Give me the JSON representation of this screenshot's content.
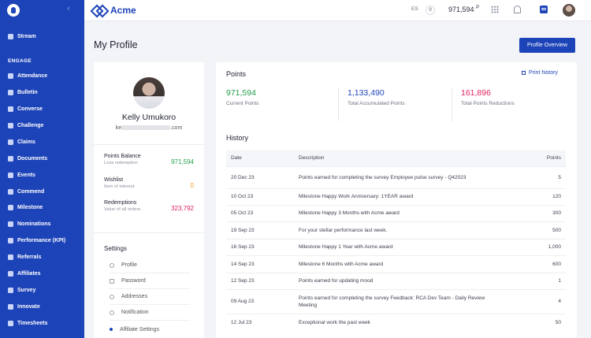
{
  "sidebar": {
    "section_engage": "ENGAGE",
    "items": [
      {
        "label": "Stream",
        "icon": "stream-icon"
      },
      {
        "label": "Attendance",
        "icon": "attendance-icon"
      },
      {
        "label": "Bulletin",
        "icon": "bulletin-icon"
      },
      {
        "label": "Converse",
        "icon": "converse-icon"
      },
      {
        "label": "Challenge",
        "icon": "trophy-icon"
      },
      {
        "label": "Claims",
        "icon": "claims-icon"
      },
      {
        "label": "Documents",
        "icon": "documents-icon"
      },
      {
        "label": "Events",
        "icon": "events-icon"
      },
      {
        "label": "Commend",
        "icon": "commend-icon"
      },
      {
        "label": "Milestone",
        "icon": "milestone-icon"
      },
      {
        "label": "Nominations",
        "icon": "nominations-icon"
      },
      {
        "label": "Performance (KPI)",
        "icon": "performance-icon"
      },
      {
        "label": "Referrals",
        "icon": "referrals-icon"
      },
      {
        "label": "Affiliates",
        "icon": "affiliates-icon"
      },
      {
        "label": "Survey",
        "icon": "survey-icon"
      },
      {
        "label": "Innovate",
        "icon": "innovate-icon"
      },
      {
        "label": "Timesheets",
        "icon": "timesheets-icon"
      }
    ]
  },
  "topbar": {
    "brand": "Acme",
    "language": "ES",
    "notification_count": "0",
    "points": "971,594",
    "points_suffix": "P"
  },
  "header": {
    "title": "My Profile",
    "overview_button": "Profile Overview"
  },
  "profile": {
    "name": "Kelly Umukoro",
    "email_prefix": "ke",
    "email_suffix": ".com",
    "points_balance": {
      "title": "Points Balance",
      "sub": "Less redemption",
      "value": "971,594",
      "color": "#22a04b"
    },
    "wishlist": {
      "title": "Wishlist",
      "sub": "Item of interest",
      "value": "0",
      "color": "#f39c12"
    },
    "redemptions": {
      "title": "Redemptions",
      "sub": "Value of all orders",
      "value": "323,792",
      "color": "#e0245e"
    }
  },
  "settings": {
    "title": "Settings",
    "items": [
      "Profile",
      "Password",
      "Addresses",
      "Notification",
      "Affiliate Settings"
    ]
  },
  "points": {
    "title": "Points",
    "print_label": "Print history",
    "current": {
      "value": "971,594",
      "label": "Current Points",
      "color": "#22a04b"
    },
    "accumulated": {
      "value": "1,133,490",
      "label": "Total Accumulated Points",
      "color": "#1d43b8"
    },
    "reductions": {
      "value": "161,896",
      "label": "Total Points Reductions",
      "color": "#e0245e"
    }
  },
  "history": {
    "title": "History",
    "columns": [
      "Date",
      "Description",
      "Points"
    ],
    "rows": [
      [
        "20 Dec 23",
        "Points earned for completing the survey Employee pulse survey - Q42023",
        "5"
      ],
      [
        "10 Oct 23",
        "Milestone Happy Work Anniversary: 1YEAR award",
        "120"
      ],
      [
        "05 Oct 23",
        "Milestone Happy 3 Months with Acme award",
        "300"
      ],
      [
        "19 Sep 23",
        "For your stellar performance last week.",
        "500"
      ],
      [
        "16 Sep 23",
        "Milestone Happy 1 Year with Acme award",
        "1,000"
      ],
      [
        "14 Sep 23",
        "Milestone 6 Months with Acme award",
        "600"
      ],
      [
        "12 Sep 23",
        "Points earned for updating mood",
        "1"
      ],
      [
        "09 Aug 23",
        "Points earned for completing the survey Feedback: RCA Dev Team - Daily Review Meeting",
        "4"
      ],
      [
        "12 Jul 23",
        "Exceptional work the past week",
        "50"
      ]
    ]
  }
}
